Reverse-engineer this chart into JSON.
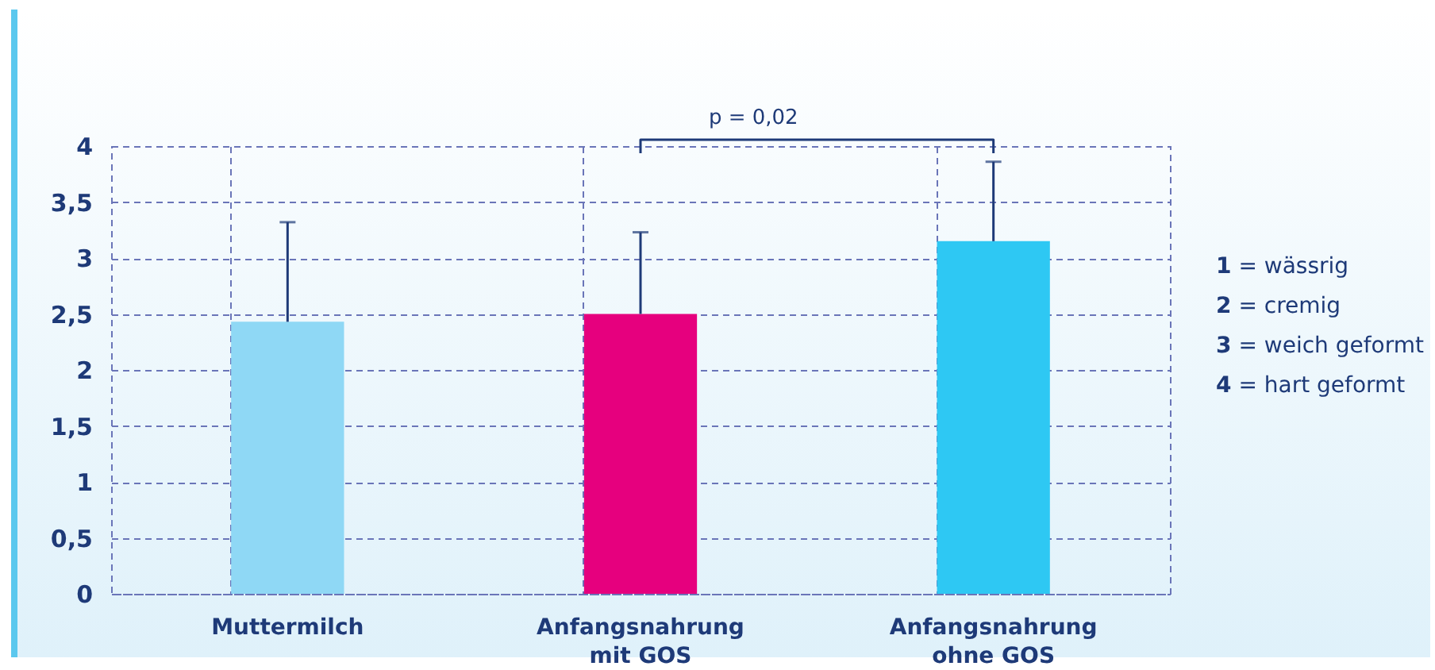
{
  "chart_data": {
    "type": "bar",
    "categories": [
      "Muttermilch",
      "Anfangsnahrung\nmit GOS",
      "Anfangsnahrung\nohne GOS"
    ],
    "values": [
      2.43,
      2.5,
      3.15
    ],
    "colors": [
      "#8fd8f5",
      "#e6007e",
      "#2ec8f3"
    ],
    "errors": [
      [
        2.43,
        3.32
      ],
      [
        2.5,
        3.23
      ],
      [
        3.15,
        3.86
      ]
    ],
    "ylim": [
      0,
      4
    ],
    "yticks": [
      0,
      {
        "value": 0.5,
        "label": "0,5"
      },
      1,
      {
        "value": 1.5,
        "label": "1,5"
      },
      2,
      {
        "value": 2.5,
        "label": "2,5"
      },
      3,
      {
        "value": 3.5,
        "label": "3,5"
      },
      4
    ],
    "grid": true,
    "annotations": [
      "p = 0,02",
      "1 = wässrig",
      "2 = cremig",
      "3 = weich geformt",
      "4 = hart geformt"
    ]
  }
}
